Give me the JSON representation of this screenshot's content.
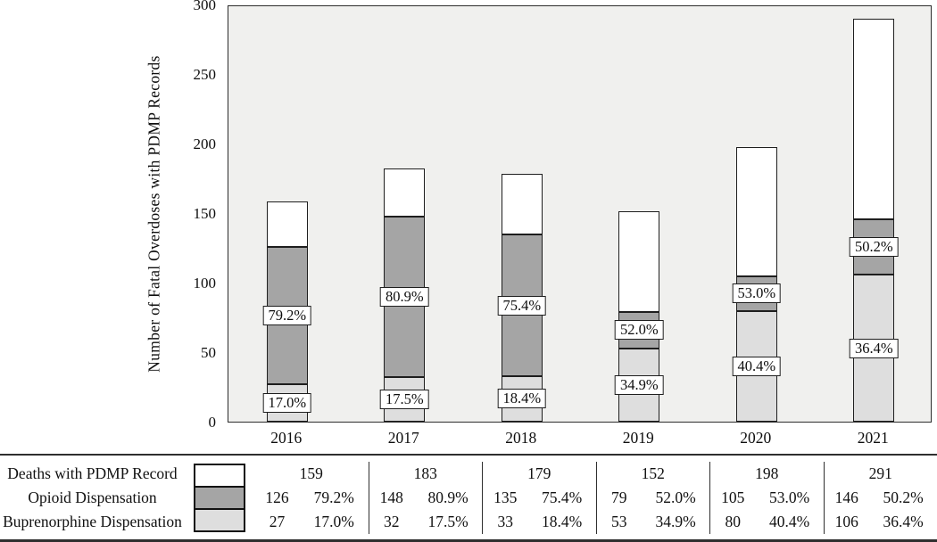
{
  "chart_data": {
    "type": "bar",
    "subtype": "overlaid-counts",
    "title": "",
    "xlabel": "",
    "ylabel": "Number of Fatal Overdoses with PDMP Records",
    "ylim": [
      0,
      300
    ],
    "yticks": [
      0,
      50,
      100,
      150,
      200,
      250,
      300
    ],
    "grid": false,
    "plot_background": "#f0f0ee",
    "categories": [
      "2016",
      "2017",
      "2018",
      "2019",
      "2020",
      "2021"
    ],
    "series": [
      {
        "name": "Deaths with PDMP Record",
        "color": "#ffffff",
        "values": [
          159,
          183,
          179,
          152,
          198,
          291
        ]
      },
      {
        "name": "Opioid Dispensation",
        "color": "#a5a5a5",
        "values": [
          126,
          148,
          135,
          79,
          105,
          146
        ],
        "pct_labels": [
          "79.2%",
          "80.9%",
          "75.4%",
          "52.0%",
          "53.0%",
          "50.2%"
        ]
      },
      {
        "name": "Buprenorphine Dispensation",
        "color": "#dedede",
        "values": [
          27,
          32,
          33,
          53,
          80,
          106
        ],
        "pct_labels": [
          "17.0%",
          "17.5%",
          "18.4%",
          "34.9%",
          "40.4%",
          "36.4%"
        ]
      }
    ],
    "legend_position": "bottom-table"
  },
  "legend_table": {
    "row_labels": [
      "Deaths with PDMP Record",
      "Opioid Dispensation",
      "Buprenorphine Dispensation"
    ]
  }
}
